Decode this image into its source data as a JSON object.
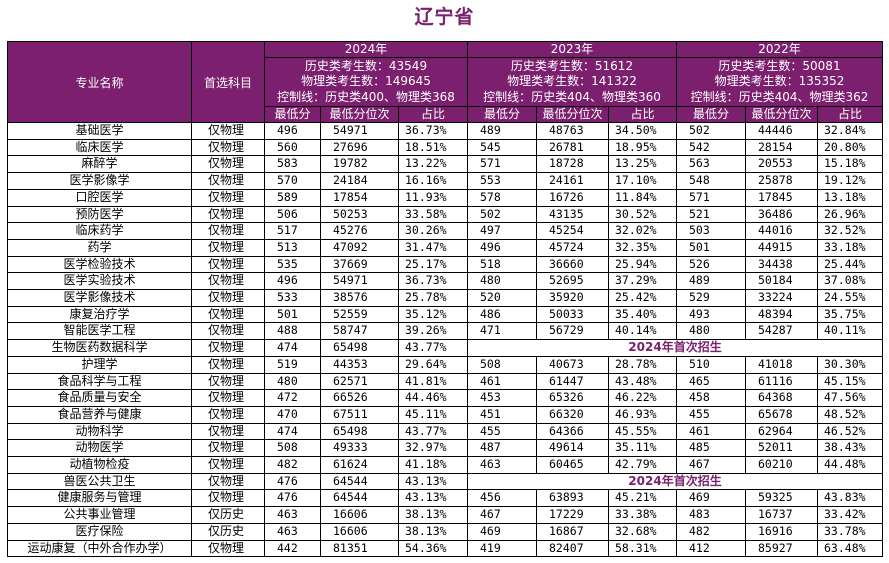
{
  "title": "辽宁省",
  "header": {
    "major": "专业名称",
    "subject": "首选科目",
    "sub_labels": [
      "最低分",
      "最低分位次",
      "占比"
    ],
    "years": [
      {
        "year": "2024年",
        "line1": "历史类考生数：43549",
        "line2": "物理类考生数：149645",
        "line3": "控制线：历史类400、物理类368"
      },
      {
        "year": "2023年",
        "line1": "历史类考生数：51612",
        "line2": "物理类考生数：141322",
        "line3": "控制线：历史类404、物理类360"
      },
      {
        "year": "2022年",
        "line1": "历史类考生数：50081",
        "line2": "物理类考生数：135352",
        "line3": "控制线：历史类404、物理类362"
      }
    ]
  },
  "first_enroll_text": "2024年首次招生",
  "rows": [
    {
      "major": "基础医学",
      "subject": "仅物理",
      "y2024": [
        "496",
        "54971",
        "36.73%"
      ],
      "y2023": [
        "489",
        "48763",
        "34.50%"
      ],
      "y2022": [
        "502",
        "44446",
        "32.84%"
      ]
    },
    {
      "major": "临床医学",
      "subject": "仅物理",
      "y2024": [
        "560",
        "27696",
        "18.51%"
      ],
      "y2023": [
        "545",
        "26781",
        "18.95%"
      ],
      "y2022": [
        "542",
        "28154",
        "20.80%"
      ]
    },
    {
      "major": "麻醉学",
      "subject": "仅物理",
      "y2024": [
        "583",
        "19782",
        "13.22%"
      ],
      "y2023": [
        "571",
        "18728",
        "13.25%"
      ],
      "y2022": [
        "563",
        "20553",
        "15.18%"
      ]
    },
    {
      "major": "医学影像学",
      "subject": "仅物理",
      "y2024": [
        "570",
        "24184",
        "16.16%"
      ],
      "y2023": [
        "553",
        "24161",
        "17.10%"
      ],
      "y2022": [
        "548",
        "25878",
        "19.12%"
      ]
    },
    {
      "major": "口腔医学",
      "subject": "仅物理",
      "y2024": [
        "589",
        "17854",
        "11.93%"
      ],
      "y2023": [
        "578",
        "16726",
        "11.84%"
      ],
      "y2022": [
        "571",
        "17845",
        "13.18%"
      ]
    },
    {
      "major": "预防医学",
      "subject": "仅物理",
      "y2024": [
        "506",
        "50253",
        "33.58%"
      ],
      "y2023": [
        "502",
        "43135",
        "30.52%"
      ],
      "y2022": [
        "521",
        "36486",
        "26.96%"
      ]
    },
    {
      "major": "临床药学",
      "subject": "仅物理",
      "y2024": [
        "517",
        "45276",
        "30.26%"
      ],
      "y2023": [
        "497",
        "45254",
        "32.02%"
      ],
      "y2022": [
        "503",
        "44016",
        "32.52%"
      ]
    },
    {
      "major": "药学",
      "subject": "仅物理",
      "y2024": [
        "513",
        "47092",
        "31.47%"
      ],
      "y2023": [
        "496",
        "45724",
        "32.35%"
      ],
      "y2022": [
        "501",
        "44915",
        "33.18%"
      ]
    },
    {
      "major": "医学检验技术",
      "subject": "仅物理",
      "y2024": [
        "535",
        "37669",
        "25.17%"
      ],
      "y2023": [
        "518",
        "36660",
        "25.94%"
      ],
      "y2022": [
        "526",
        "34438",
        "25.44%"
      ]
    },
    {
      "major": "医学实验技术",
      "subject": "仅物理",
      "y2024": [
        "496",
        "54971",
        "36.73%"
      ],
      "y2023": [
        "480",
        "52695",
        "37.29%"
      ],
      "y2022": [
        "489",
        "50184",
        "37.08%"
      ]
    },
    {
      "major": "医学影像技术",
      "subject": "仅物理",
      "y2024": [
        "533",
        "38576",
        "25.78%"
      ],
      "y2023": [
        "520",
        "35920",
        "25.42%"
      ],
      "y2022": [
        "529",
        "33224",
        "24.55%"
      ]
    },
    {
      "major": "康复治疗学",
      "subject": "仅物理",
      "y2024": [
        "501",
        "52559",
        "35.12%"
      ],
      "y2023": [
        "486",
        "50033",
        "35.40%"
      ],
      "y2022": [
        "493",
        "48394",
        "35.75%"
      ]
    },
    {
      "major": "智能医学工程",
      "subject": "仅物理",
      "y2024": [
        "488",
        "58747",
        "39.26%"
      ],
      "y2023": [
        "471",
        "56729",
        "40.14%"
      ],
      "y2022": [
        "480",
        "54287",
        "40.11%"
      ]
    },
    {
      "major": "生物医药数据科学",
      "subject": "仅物理",
      "y2024": [
        "474",
        "65498",
        "43.77%"
      ],
      "first": true
    },
    {
      "major": "护理学",
      "subject": "仅物理",
      "y2024": [
        "519",
        "44353",
        "29.64%"
      ],
      "y2023": [
        "508",
        "40673",
        "28.78%"
      ],
      "y2022": [
        "510",
        "41018",
        "30.30%"
      ]
    },
    {
      "major": "食品科学与工程",
      "subject": "仅物理",
      "y2024": [
        "480",
        "62571",
        "41.81%"
      ],
      "y2023": [
        "461",
        "61447",
        "43.48%"
      ],
      "y2022": [
        "465",
        "61116",
        "45.15%"
      ]
    },
    {
      "major": "食品质量与安全",
      "subject": "仅物理",
      "y2024": [
        "472",
        "66526",
        "44.46%"
      ],
      "y2023": [
        "453",
        "65326",
        "46.22%"
      ],
      "y2022": [
        "458",
        "64368",
        "47.56%"
      ]
    },
    {
      "major": "食品营养与健康",
      "subject": "仅物理",
      "y2024": [
        "470",
        "67511",
        "45.11%"
      ],
      "y2023": [
        "451",
        "66320",
        "46.93%"
      ],
      "y2022": [
        "455",
        "65678",
        "48.52%"
      ]
    },
    {
      "major": "动物科学",
      "subject": "仅物理",
      "y2024": [
        "474",
        "65498",
        "43.77%"
      ],
      "y2023": [
        "455",
        "64366",
        "45.55%"
      ],
      "y2022": [
        "461",
        "62964",
        "46.52%"
      ]
    },
    {
      "major": "动物医学",
      "subject": "仅物理",
      "y2024": [
        "508",
        "49333",
        "32.97%"
      ],
      "y2023": [
        "487",
        "49614",
        "35.11%"
      ],
      "y2022": [
        "485",
        "52011",
        "38.43%"
      ]
    },
    {
      "major": "动植物检疫",
      "subject": "仅物理",
      "y2024": [
        "482",
        "61624",
        "41.18%"
      ],
      "y2023": [
        "463",
        "60465",
        "42.79%"
      ],
      "y2022": [
        "467",
        "60210",
        "44.48%"
      ]
    },
    {
      "major": "兽医公共卫生",
      "subject": "仅物理",
      "y2024": [
        "476",
        "64544",
        "43.13%"
      ],
      "first": true
    },
    {
      "major": "健康服务与管理",
      "subject": "仅物理",
      "y2024": [
        "476",
        "64544",
        "43.13%"
      ],
      "y2023": [
        "456",
        "63893",
        "45.21%"
      ],
      "y2022": [
        "469",
        "59325",
        "43.83%"
      ]
    },
    {
      "major": "公共事业管理",
      "subject": "仅历史",
      "y2024": [
        "463",
        "16606",
        "38.13%"
      ],
      "y2023": [
        "467",
        "17229",
        "33.38%"
      ],
      "y2022": [
        "483",
        "16737",
        "33.42%"
      ]
    },
    {
      "major": "医疗保险",
      "subject": "仅历史",
      "y2024": [
        "463",
        "16606",
        "38.13%"
      ],
      "y2023": [
        "469",
        "16867",
        "32.68%"
      ],
      "y2022": [
        "482",
        "16916",
        "33.78%"
      ]
    },
    {
      "major": "运动康复（中外合作办学）",
      "subject": "仅物理",
      "y2024": [
        "442",
        "81351",
        "54.36%"
      ],
      "y2023": [
        "419",
        "82407",
        "58.31%"
      ],
      "y2022": [
        "412",
        "85927",
        "63.48%"
      ]
    }
  ]
}
